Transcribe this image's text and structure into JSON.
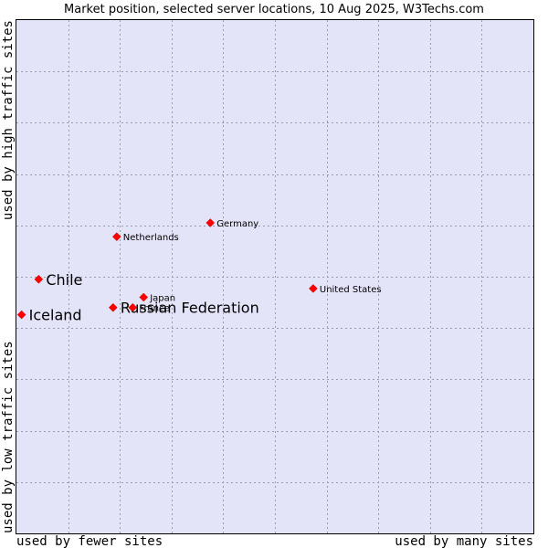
{
  "chart_data": {
    "type": "scatter",
    "title": "Market position, selected server locations, 10 Aug 2025, W3Techs.com",
    "x_axis": {
      "low_label": "used by fewer sites",
      "high_label": "used by many sites"
    },
    "y_axis": {
      "low_label": "used by low traffic sites",
      "high_label": "used by high traffic sites"
    },
    "xlim": [
      0,
      100
    ],
    "ylim": [
      0,
      100
    ],
    "grid": true,
    "plot_background": "#e4e4f8",
    "grid_color": "#9a9ab0",
    "marker_color": "#ff0000",
    "points": [
      {
        "name": "Iceland",
        "x": 1.0,
        "y": 42.6,
        "emphasis": true
      },
      {
        "name": "Chile",
        "x": 4.3,
        "y": 49.5,
        "emphasis": true
      },
      {
        "name": "Russian Federation",
        "x": 18.7,
        "y": 44.0,
        "emphasis": true
      },
      {
        "name": "France",
        "x": 22.5,
        "y": 44.0,
        "emphasis": false
      },
      {
        "name": "Japan",
        "x": 24.6,
        "y": 46.0,
        "emphasis": false
      },
      {
        "name": "Netherlands",
        "x": 19.4,
        "y": 57.8,
        "emphasis": false
      },
      {
        "name": "Germany",
        "x": 37.5,
        "y": 60.5,
        "emphasis": false
      },
      {
        "name": "United States",
        "x": 57.4,
        "y": 47.7,
        "emphasis": false
      }
    ]
  }
}
